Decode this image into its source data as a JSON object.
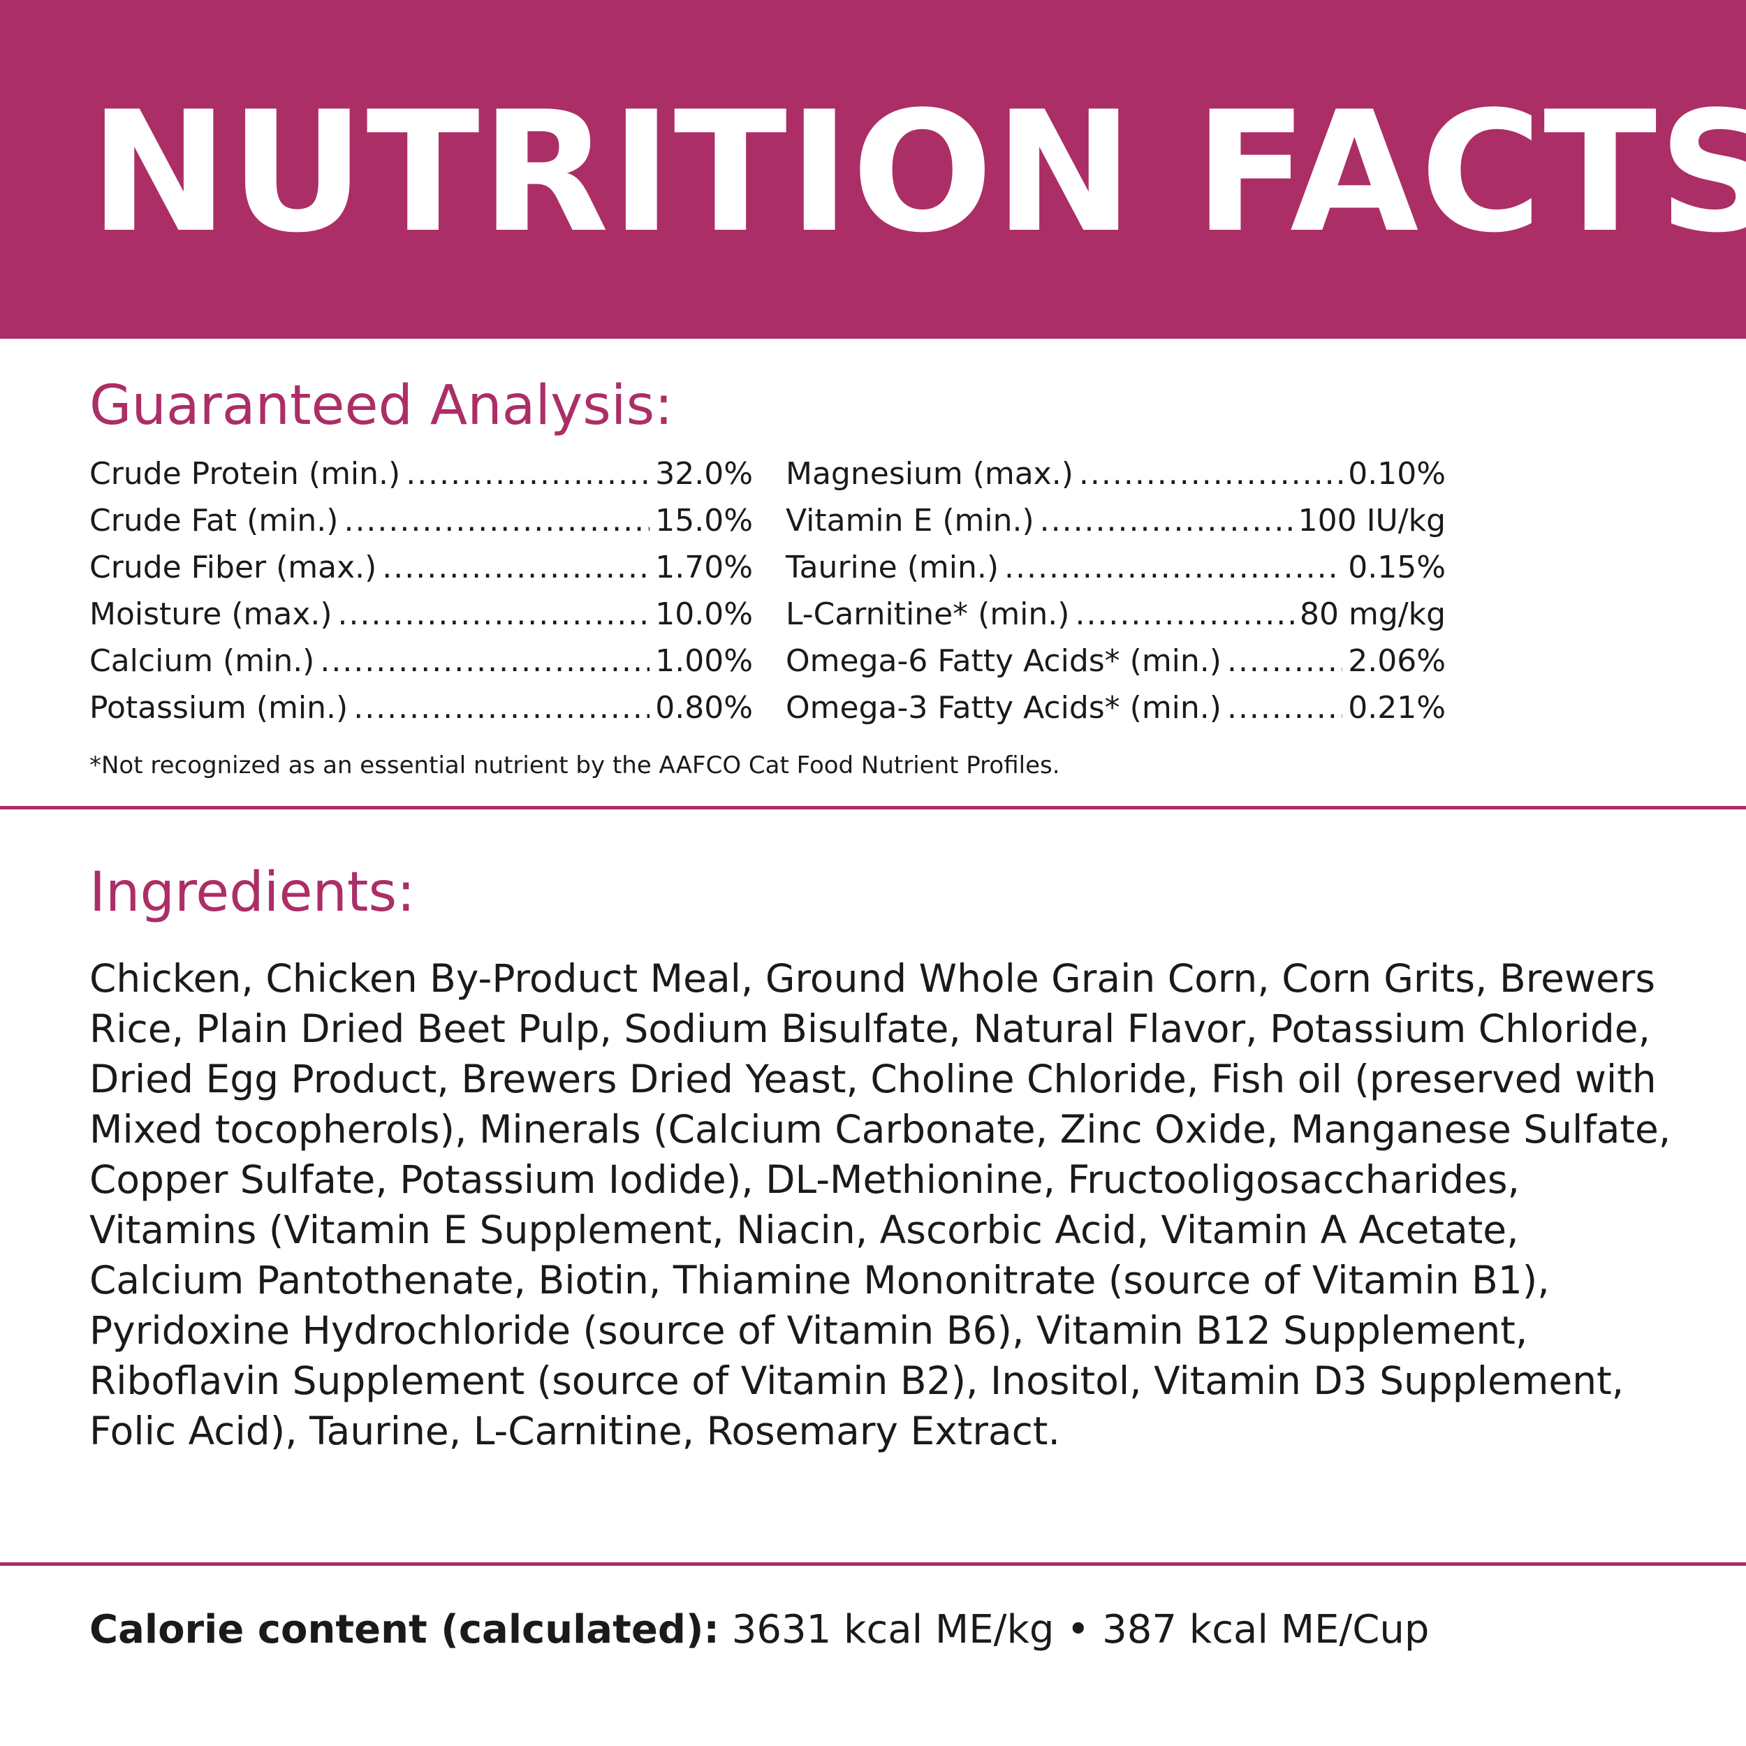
{
  "header": {
    "title": "NUTRITION FACTS"
  },
  "guaranteed_analysis": {
    "heading": "Guaranteed Analysis:",
    "left_column": [
      {
        "label": "Crude Protein (min.)",
        "value": "32.0%"
      },
      {
        "label": "Crude Fat (min.)",
        "value": "15.0%"
      },
      {
        "label": "Crude Fiber (max.)",
        "value": "1.70%"
      },
      {
        "label": "Moisture (max.)",
        "value": "10.0%"
      },
      {
        "label": "Calcium (min.)",
        "value": "1.00%"
      },
      {
        "label": "Potassium (min.)",
        "value": "0.80%"
      }
    ],
    "right_column": [
      {
        "label": "Magnesium (max.)",
        "value": "0.10%"
      },
      {
        "label": "Vitamin E (min.)",
        "value": "100 IU/kg"
      },
      {
        "label": "Taurine (min.)",
        "value": "0.15%"
      },
      {
        "label": "L-Carnitine* (min.)",
        "value": "80 mg/kg"
      },
      {
        "label": "Omega-6 Fatty Acids* (min.)",
        "value": "2.06%"
      },
      {
        "label": "Omega-3 Fatty Acids* (min.)",
        "value": "0.21%"
      }
    ],
    "footnote": "*Not recognized as an essential nutrient by the AAFCO Cat Food Nutrient Profiles."
  },
  "ingredients": {
    "heading": "Ingredients:",
    "text": "Chicken, Chicken By-Product Meal, Ground Whole Grain Corn, Corn Grits, Brewers Rice, Plain Dried Beet Pulp, Sodium Bisulfate, Natural Flavor, Potassium Chloride, Dried Egg Product, Brewers Dried Yeast, Choline Chloride, Fish oil (preserved with Mixed tocopherols), Minerals (Calcium Carbonate, Zinc Oxide, Manganese Sulfate, Copper Sulfate, Potassium Iodide), DL-Methionine, Fructooligosaccharides, Vitamins (Vitamin E Supplement, Niacin, Ascorbic Acid, Vitamin A Acetate, Calcium Pantothenate, Biotin, Thiamine Mononitrate (source of Vitamin B1), Pyridoxine Hydrochloride (source of Vitamin B6), Vitamin B12 Supplement, Riboflavin Supplement (source of Vitamin B2), Inositol, Vitamin D3 Supplement, Folic Acid), Taurine, L-Carnitine, Rosemary Extract."
  },
  "calorie": {
    "label": "Calorie content (calculated):",
    "value": "3631 kcal ME/kg • 387 kcal ME/Cup"
  },
  "colors": {
    "accent": "#ac2e66",
    "text": "#1a1a1a",
    "background": "#ffffff"
  }
}
